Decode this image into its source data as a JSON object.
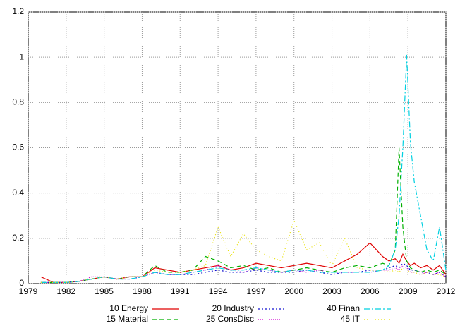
{
  "chart_data": {
    "type": "line",
    "x": [
      1980,
      1981,
      1982,
      1983,
      1984,
      1985,
      1986,
      1987,
      1988,
      1989,
      1990,
      1991,
      1992,
      1993,
      1994,
      1995,
      1996,
      1997,
      1998,
      1999,
      2000,
      2001,
      2002,
      2003,
      2004,
      2005,
      2006,
      2007,
      2007.5,
      2008,
      2008.3,
      2008.6,
      2008.9,
      2009.2,
      2009.5,
      2010,
      2010.5,
      2011,
      2011.5,
      2012
    ],
    "xlim": [
      1979,
      2012
    ],
    "xticks": [
      1979,
      1982,
      1985,
      1988,
      1991,
      1994,
      1997,
      2000,
      2003,
      2006,
      2009,
      2012
    ],
    "ylim": [
      0,
      1.2
    ],
    "yticks": [
      0,
      0.2,
      0.4,
      0.6,
      0.8,
      1,
      1.2
    ],
    "grid": true,
    "legend": "bottom",
    "series": [
      {
        "name": "10 Energy",
        "color": "#e00000",
        "dash": "none",
        "values": [
          0.03,
          0.005,
          0.005,
          0.01,
          0.02,
          0.03,
          0.02,
          0.03,
          0.03,
          0.07,
          0.06,
          0.05,
          0.06,
          0.07,
          0.08,
          0.06,
          0.07,
          0.09,
          0.08,
          0.07,
          0.08,
          0.09,
          0.08,
          0.07,
          0.1,
          0.13,
          0.18,
          0.12,
          0.1,
          0.11,
          0.09,
          0.13,
          0.1,
          0.08,
          0.09,
          0.07,
          0.08,
          0.06,
          0.08,
          0.04
        ]
      },
      {
        "name": "15 Material",
        "color": "#00b000",
        "dash": "6,4",
        "values": [
          0.005,
          0.005,
          0.005,
          0.01,
          0.02,
          0.03,
          0.02,
          0.03,
          0.03,
          0.08,
          0.05,
          0.05,
          0.06,
          0.12,
          0.1,
          0.07,
          0.08,
          0.06,
          0.07,
          0.05,
          0.06,
          0.07,
          0.06,
          0.05,
          0.07,
          0.08,
          0.07,
          0.09,
          0.08,
          0.15,
          0.6,
          0.25,
          0.1,
          0.07,
          0.06,
          0.05,
          0.06,
          0.05,
          0.06,
          0.04
        ]
      },
      {
        "name": "20 Industry",
        "color": "#1010d0",
        "dash": "2,3",
        "values": [
          0.005,
          0.005,
          0.005,
          0.01,
          0.02,
          0.03,
          0.02,
          0.02,
          0.03,
          0.05,
          0.04,
          0.04,
          0.04,
          0.05,
          0.06,
          0.05,
          0.05,
          0.06,
          0.05,
          0.05,
          0.05,
          0.06,
          0.05,
          0.04,
          0.05,
          0.05,
          0.06,
          0.06,
          0.07,
          0.08,
          0.07,
          0.09,
          0.08,
          0.06,
          0.06,
          0.05,
          0.05,
          0.04,
          0.05,
          0.03
        ]
      },
      {
        "name": "25 ConsDisc",
        "color": "#d000d0",
        "dash": "1,2",
        "values": [
          0.005,
          0.005,
          0.005,
          0.01,
          0.03,
          0.03,
          0.02,
          0.03,
          0.03,
          0.05,
          0.04,
          0.04,
          0.05,
          0.06,
          0.08,
          0.06,
          0.05,
          0.07,
          0.06,
          0.05,
          0.06,
          0.05,
          0.06,
          0.05,
          0.05,
          0.05,
          0.05,
          0.06,
          0.06,
          0.07,
          0.06,
          0.08,
          0.07,
          0.05,
          0.05,
          0.04,
          0.05,
          0.04,
          0.05,
          0.03
        ]
      },
      {
        "name": "40 Finan",
        "color": "#00d0e0",
        "dash": "8,3,2,3",
        "values": [
          0.005,
          0.005,
          0.005,
          0.01,
          0.02,
          0.03,
          0.02,
          0.02,
          0.03,
          0.05,
          0.04,
          0.04,
          0.05,
          0.06,
          0.07,
          0.06,
          0.06,
          0.07,
          0.06,
          0.05,
          0.06,
          0.06,
          0.05,
          0.05,
          0.05,
          0.05,
          0.05,
          0.06,
          0.08,
          0.15,
          0.3,
          0.6,
          1.01,
          0.62,
          0.45,
          0.3,
          0.15,
          0.1,
          0.25,
          0.06
        ]
      },
      {
        "name": "45 IT",
        "color": "#e8e000",
        "dash": "1,3",
        "values": [
          0.005,
          0.005,
          0.005,
          0.01,
          0.02,
          0.03,
          0.02,
          0.03,
          0.03,
          0.06,
          0.05,
          0.05,
          0.06,
          0.08,
          0.25,
          0.12,
          0.22,
          0.15,
          0.12,
          0.1,
          0.28,
          0.15,
          0.18,
          0.08,
          0.2,
          0.07,
          0.06,
          0.06,
          0.05,
          0.06,
          0.05,
          0.07,
          0.06,
          0.05,
          0.05,
          0.04,
          0.05,
          0.04,
          0.04,
          0.03
        ]
      }
    ]
  }
}
